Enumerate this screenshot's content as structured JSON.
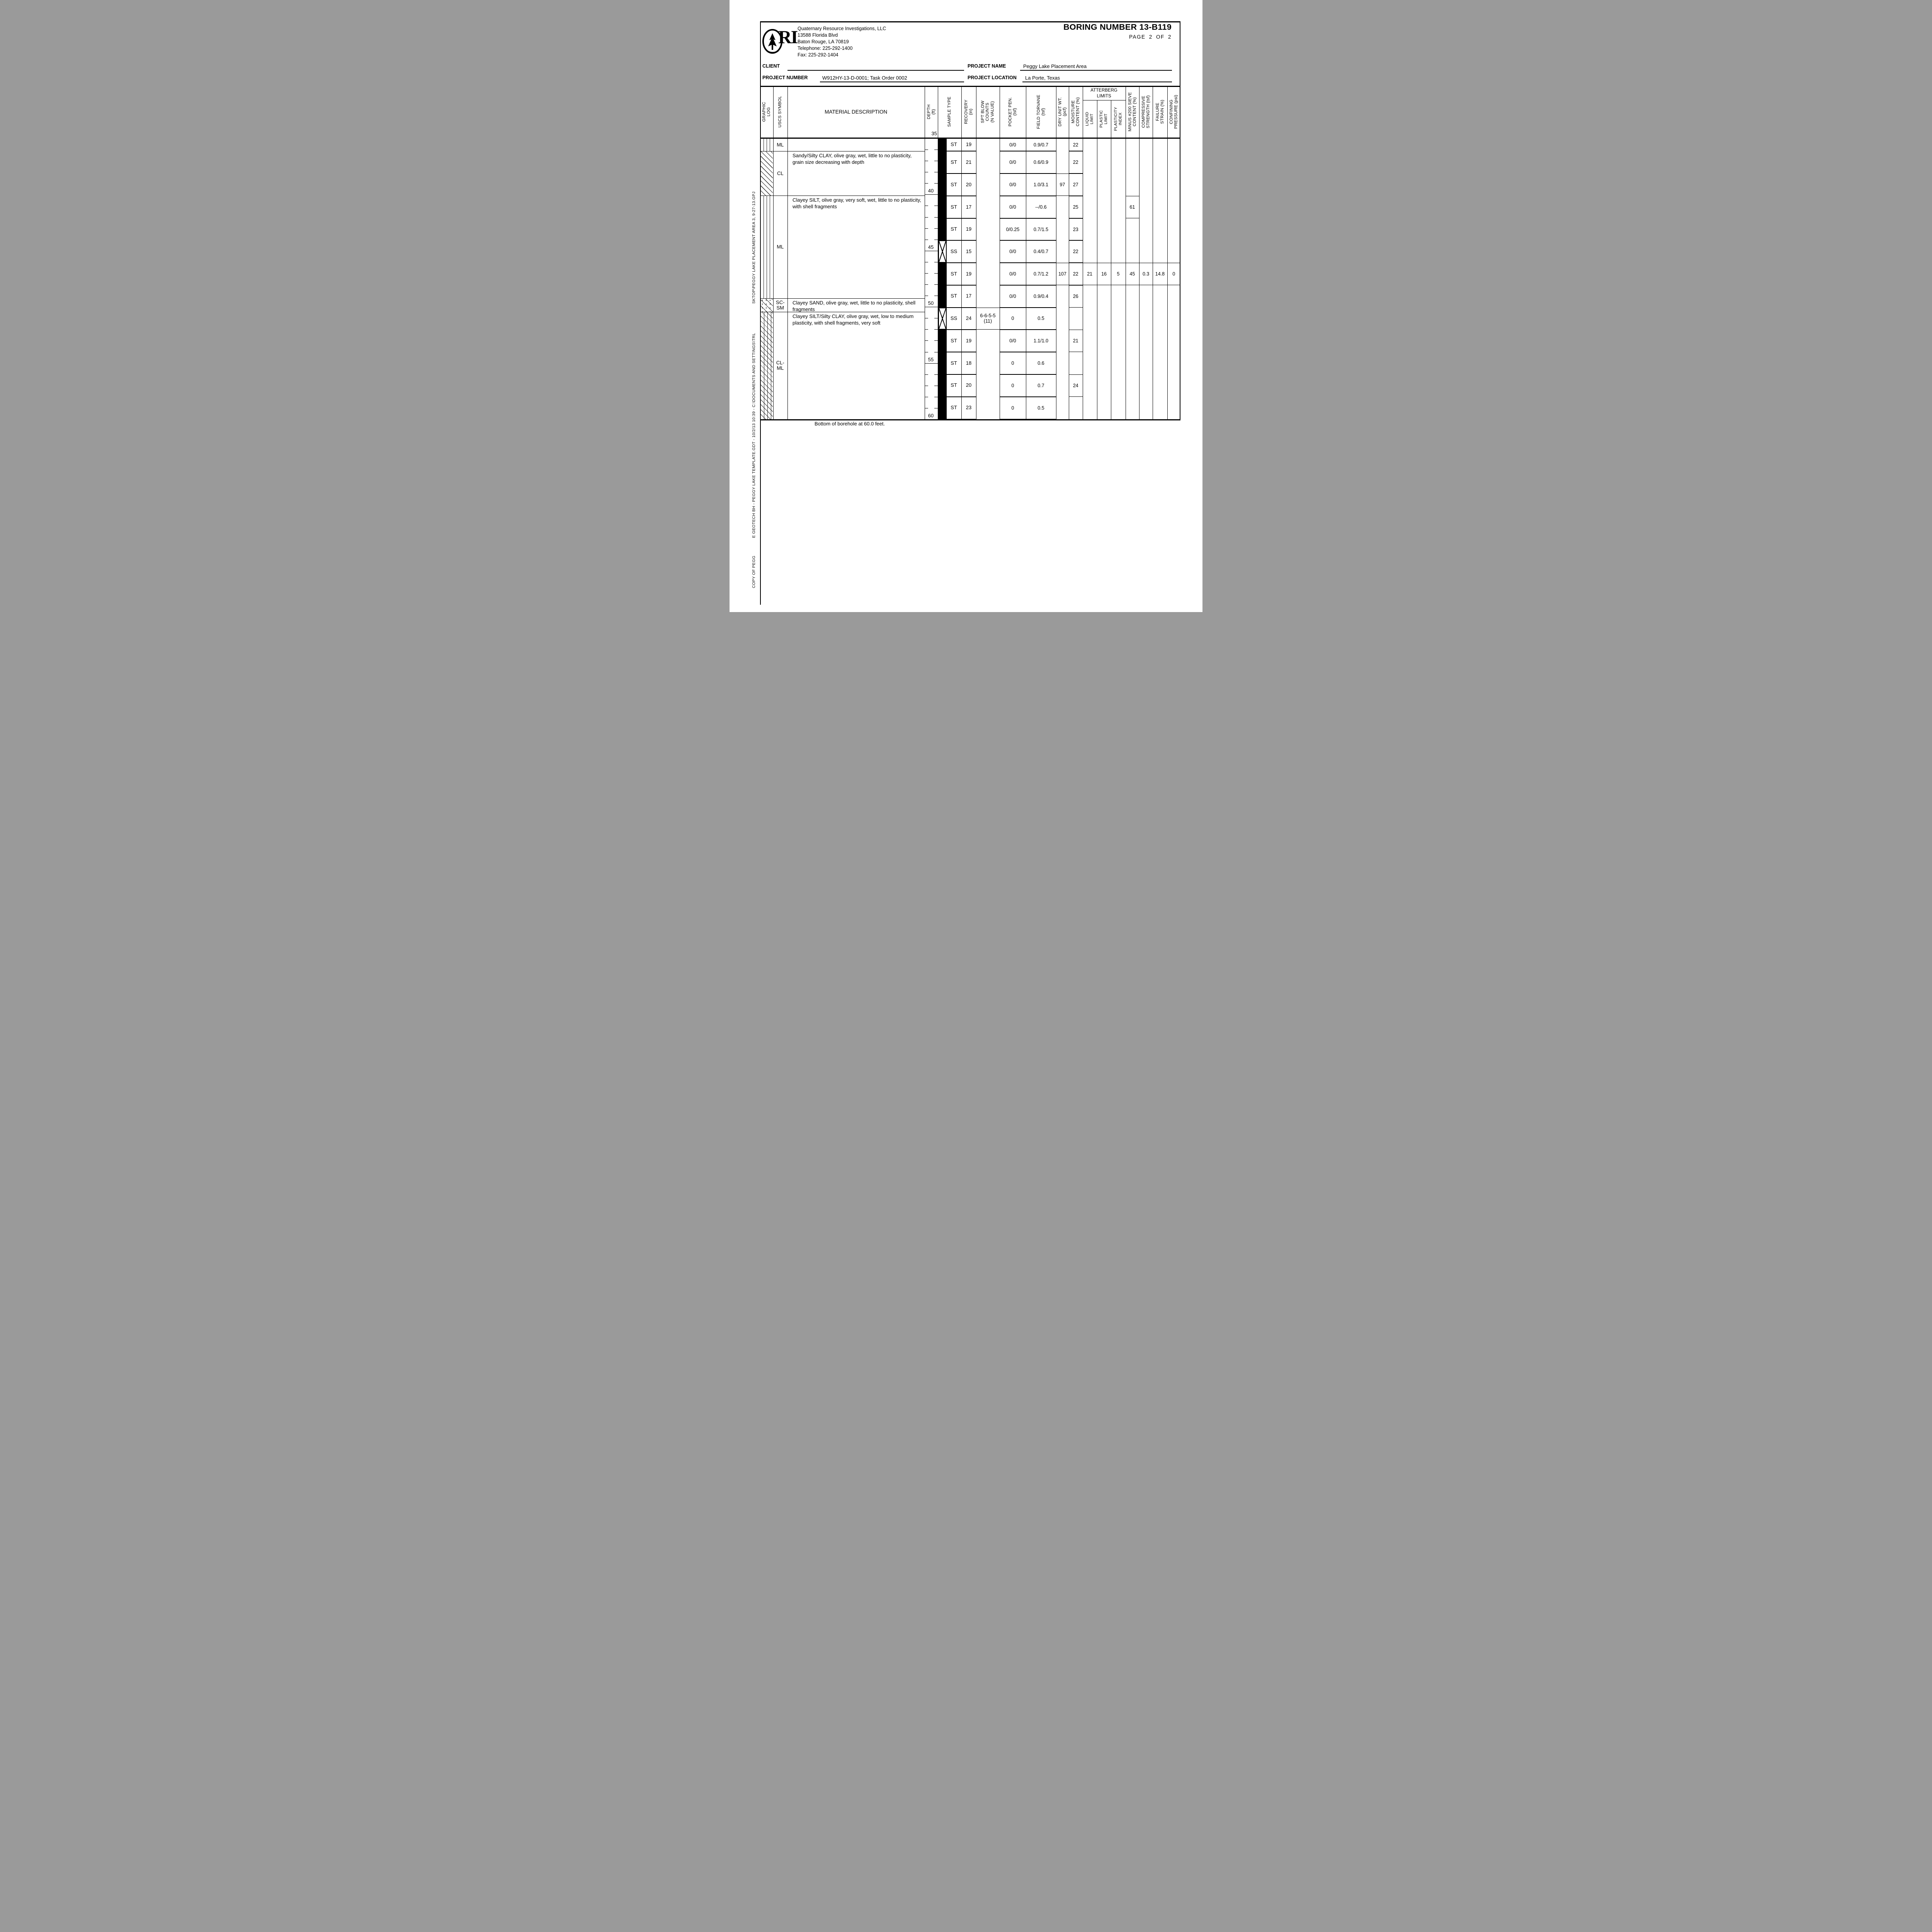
{
  "header": {
    "company_name": "Quaternary Resource Investigations, LLC",
    "address1": "13588 Florida Blvd",
    "address2": "Baton Rouge, LA 70819",
    "phone": "Telephone:  225-292-1400",
    "fax": "Fax:  225-292-1404",
    "logo_text": "RI",
    "title": "BORING NUMBER 13-B119",
    "page": "PAGE  2  OF  2"
  },
  "fields": {
    "client_label": "CLIENT",
    "client_value": "",
    "project_name_label": "PROJECT NAME",
    "project_name_value": "Peggy Lake Placement Area",
    "project_number_label": "PROJECT NUMBER",
    "project_number_value": "W912HY-13-D-0001; Task Order 0002",
    "project_location_label": "PROJECT LOCATION",
    "project_location_value": "La Porte, Texas"
  },
  "log": {
    "columns": [
      {
        "key": "graphic",
        "label": "GRAPHIC\nLOG"
      },
      {
        "key": "uscs",
        "label": "USCS SYMBOL"
      },
      {
        "key": "material",
        "label": "MATERIAL DESCRIPTION"
      },
      {
        "key": "depth",
        "label": "DEPTH\n(ft)"
      },
      {
        "key": "sample",
        "label": "SAMPLE TYPE"
      },
      {
        "key": "recovery",
        "label": "RECOVERY\n(in)"
      },
      {
        "key": "spt",
        "label": "SPT BLOW\nCOUNTS\n(N VALUE)"
      },
      {
        "key": "pocket",
        "label": "POCKET PEN.\n(tsf)"
      },
      {
        "key": "torvane",
        "label": "FIELD TORVANE\n(tsf)"
      },
      {
        "key": "dry",
        "label": "DRY UNIT WT.\n(pcf)"
      },
      {
        "key": "moisture",
        "label": "MOISTURE\nCONTENT (%)"
      },
      {
        "key": "ll",
        "label": "LIQUID\nLIMIT"
      },
      {
        "key": "pl",
        "label": "PLASTIC\nLIMIT"
      },
      {
        "key": "pi",
        "label": "PLASTICITY\nINDEX"
      },
      {
        "key": "sieve",
        "label": "MINUS #200 SIEVE\nCONTENT (%)"
      },
      {
        "key": "comp",
        "label": "COMPRESSIVE\nSTRENGTH (tsf)"
      },
      {
        "key": "fail",
        "label": "FAILURE\nSTRAIN (%)"
      },
      {
        "key": "conf",
        "label": "CONFINING\nPRESSURE (psi)"
      }
    ],
    "atterberg_label": "ATTERBERG\nLIMITS",
    "depth_scale": {
      "top_ft": 35,
      "bottom_ft": 60,
      "major_interval_ft": 5,
      "minor_interval_ft": 1,
      "header_label": "35"
    },
    "layers": [
      {
        "uscs": "ML",
        "pattern": "silt-vertical",
        "top_ft": 35.0,
        "bottom_ft": 36.15,
        "description": ""
      },
      {
        "uscs": "CL",
        "pattern": "clay-diagonal",
        "top_ft": 36.15,
        "bottom_ft": 40.1,
        "description": "Sandy/Silty CLAY, olive gray, wet, little to no plasticity, grain size decreasing with depth"
      },
      {
        "uscs": "ML",
        "pattern": "silt-vertical",
        "top_ft": 40.1,
        "bottom_ft": 49.25,
        "description": "Clayey SILT, olive gray, very soft, wet, little to no plasticity, with shell fragments"
      },
      {
        "uscs": "SC-SM",
        "pattern": "sand-diagonal-dots",
        "top_ft": 49.25,
        "bottom_ft": 50.45,
        "description": "Clayey SAND, olive gray, wet, little to no plasticity, shell fragments"
      },
      {
        "uscs": "CL-ML",
        "pattern": "silt-clay-mixed",
        "top_ft": 50.45,
        "bottom_ft": 60.0,
        "description": "Clayey SILT/Silty CLAY, olive gray, wet, low to medium plasticity, with shell fragments, very soft"
      }
    ],
    "samples": [
      {
        "top_ft": 35.0,
        "bottom_ft": 36.15,
        "type": "ST",
        "recovery": "19",
        "pocket": "0/0",
        "torvane": "0.9/0.7",
        "moisture": "22"
      },
      {
        "top_ft": 36.15,
        "bottom_ft": 38.14,
        "type": "ST",
        "recovery": "21",
        "pocket": "0/0",
        "torvane": "0.6/0.9",
        "moisture": "22"
      },
      {
        "top_ft": 38.14,
        "bottom_ft": 40.12,
        "type": "ST",
        "recovery": "20",
        "pocket": "0/0",
        "torvane": "1.0/3.1",
        "dry": "97",
        "moisture": "27"
      },
      {
        "top_ft": 40.12,
        "bottom_ft": 42.11,
        "type": "ST",
        "recovery": "17",
        "pocket": "0/0",
        "torvane": "--/0.6",
        "moisture": "25",
        "sieve": "61"
      },
      {
        "top_ft": 42.11,
        "bottom_ft": 44.09,
        "type": "ST",
        "recovery": "19",
        "pocket": "0/0.25",
        "torvane": "0.7/1.5",
        "moisture": "23"
      },
      {
        "top_ft": 44.09,
        "bottom_ft": 46.08,
        "type": "SS",
        "recovery": "15",
        "pocket": "0/0",
        "torvane": "0.4/0.7",
        "moisture": "22"
      },
      {
        "top_ft": 46.08,
        "bottom_ft": 48.06,
        "type": "ST",
        "recovery": "19",
        "pocket": "0/0",
        "torvane": "0.7/1.2",
        "dry": "107",
        "moisture": "22",
        "ll": "21",
        "pl": "16",
        "pi": "5",
        "sieve": "45",
        "comp": "0.3",
        "fail": "14.8",
        "conf": "0"
      },
      {
        "top_ft": 48.06,
        "bottom_ft": 50.05,
        "type": "ST",
        "recovery": "17",
        "pocket": "0/0",
        "torvane": "0.9/0.4",
        "moisture": "26"
      },
      {
        "top_ft": 50.05,
        "bottom_ft": 52.03,
        "type": "SS",
        "recovery": "24",
        "spt": "6-6-5-5\n(11)",
        "pocket": "0",
        "torvane": "0.5"
      },
      {
        "top_ft": 52.03,
        "bottom_ft": 54.02,
        "type": "ST",
        "recovery": "19",
        "pocket": "0/0",
        "torvane": "1.1/1.0",
        "moisture": "21"
      },
      {
        "top_ft": 54.02,
        "bottom_ft": 56.0,
        "type": "ST",
        "recovery": "18",
        "pocket": "0",
        "torvane": "0.6"
      },
      {
        "top_ft": 56.0,
        "bottom_ft": 57.99,
        "type": "ST",
        "recovery": "20",
        "pocket": "0",
        "torvane": "0.7",
        "moisture": "24"
      },
      {
        "top_ft": 57.99,
        "bottom_ft": 60.0,
        "type": "ST",
        "recovery": "23",
        "pocket": "0",
        "torvane": "0.5"
      }
    ],
    "bottom_note": "Bottom of borehole at 60.0 feet."
  },
  "sidebar": {
    "segments": [
      "COPY OF PEGG",
      "E GEOTECH BH - PEGGY LAKE TEMPLATE.GDT - 10/2/13 10:39 - C:\\DOCUMENTS AND SETTINGS\\TRL",
      "SKTOP\\PEGGY LAKE PLACEMENT AREA 3, 9-27-13.GPJ"
    ]
  },
  "colors": {
    "ink": "#000000",
    "paper": "#ffffff"
  }
}
